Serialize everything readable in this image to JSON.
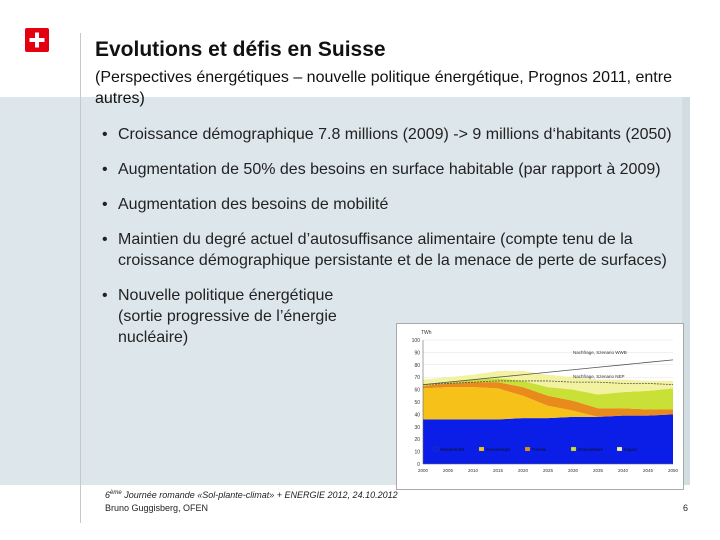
{
  "header": {
    "title": "Evolutions et défis en Suisse",
    "subtitle": "(Perspectives énergétiques – nouvelle politique énergétique, Prognos 2011, entre autres)"
  },
  "bullets": [
    "Croissance démographique 7.8 millions (2009) -> 9 millions d‘habitants (2050)",
    "Augmentation de 50% des besoins en surface habitable (par rapport à 2009)",
    "Augmentation des besoins de mobilité",
    "Maintien du degré actuel d’autosuffisance alimentaire (compte tenu de la croissance démographique persistante et de la menace de perte de surfaces)",
    "Nouvelle politique énergétique (sortie progressive de l’énergie nucléaire)"
  ],
  "bullet_symbol": "•",
  "chart_data": {
    "type": "area",
    "ylabel": "TWh",
    "yticks": [
      "0",
      "10",
      "20",
      "30",
      "40",
      "50",
      "60",
      "70",
      "80",
      "90",
      "100"
    ],
    "ylim": [
      0,
      100
    ],
    "xticks": [
      "2000",
      "2005",
      "2010",
      "2015",
      "2020",
      "2025",
      "2030",
      "2035",
      "2040",
      "2045",
      "2050"
    ],
    "annotations": [
      "Nachfrage, Szenario WWB",
      "Nachfrage, Szenario NEP"
    ],
    "legend": [
      "Wasserkraft",
      "Kernenergie",
      "Fossile",
      "Erneuerbare",
      "Import"
    ],
    "series": [
      {
        "name": "Wasserkraft",
        "color": "#0a1ee8",
        "values": [
          36,
          36,
          36,
          36,
          37,
          37,
          38,
          38,
          39,
          39,
          40
        ]
      },
      {
        "name": "Kernenergie",
        "color": "#f6c21a",
        "values": [
          25,
          26,
          26,
          25,
          18,
          10,
          5,
          0,
          0,
          0,
          0
        ]
      },
      {
        "name": "Fossile",
        "color": "#e88a1c",
        "values": [
          2,
          3,
          4,
          5,
          7,
          8,
          8,
          7,
          6,
          5,
          4
        ]
      },
      {
        "name": "Erneuerbare",
        "color": "#c9e036",
        "values": [
          1,
          1,
          2,
          3,
          5,
          7,
          9,
          11,
          13,
          15,
          17
        ]
      },
      {
        "name": "Import",
        "color": "#f2f2a0",
        "values": [
          4,
          4,
          4,
          6,
          8,
          10,
          10,
          12,
          10,
          8,
          6
        ]
      }
    ],
    "demand_lines": [
      {
        "name": "Nachfrage, Szenario WWB",
        "color": "#555555",
        "values": [
          64,
          66,
          68,
          70,
          72,
          74,
          76,
          78,
          80,
          82,
          84
        ]
      },
      {
        "name": "Nachfrage, Szenario NEP",
        "color": "#555555",
        "values": [
          64,
          65,
          66,
          67,
          67,
          67,
          66,
          66,
          65,
          65,
          64
        ]
      }
    ]
  },
  "footer": {
    "event_prefix": "6",
    "event_sup": "ème",
    "event_rest": " Journée romande «Sol-plante-climat» + ENERGIE 2012, 24.10.2012",
    "author": "Bruno Guggisberg, OFEN",
    "page": "6"
  },
  "colors": {
    "panel": "#dde6ea",
    "flag_red": "#e3000f"
  }
}
